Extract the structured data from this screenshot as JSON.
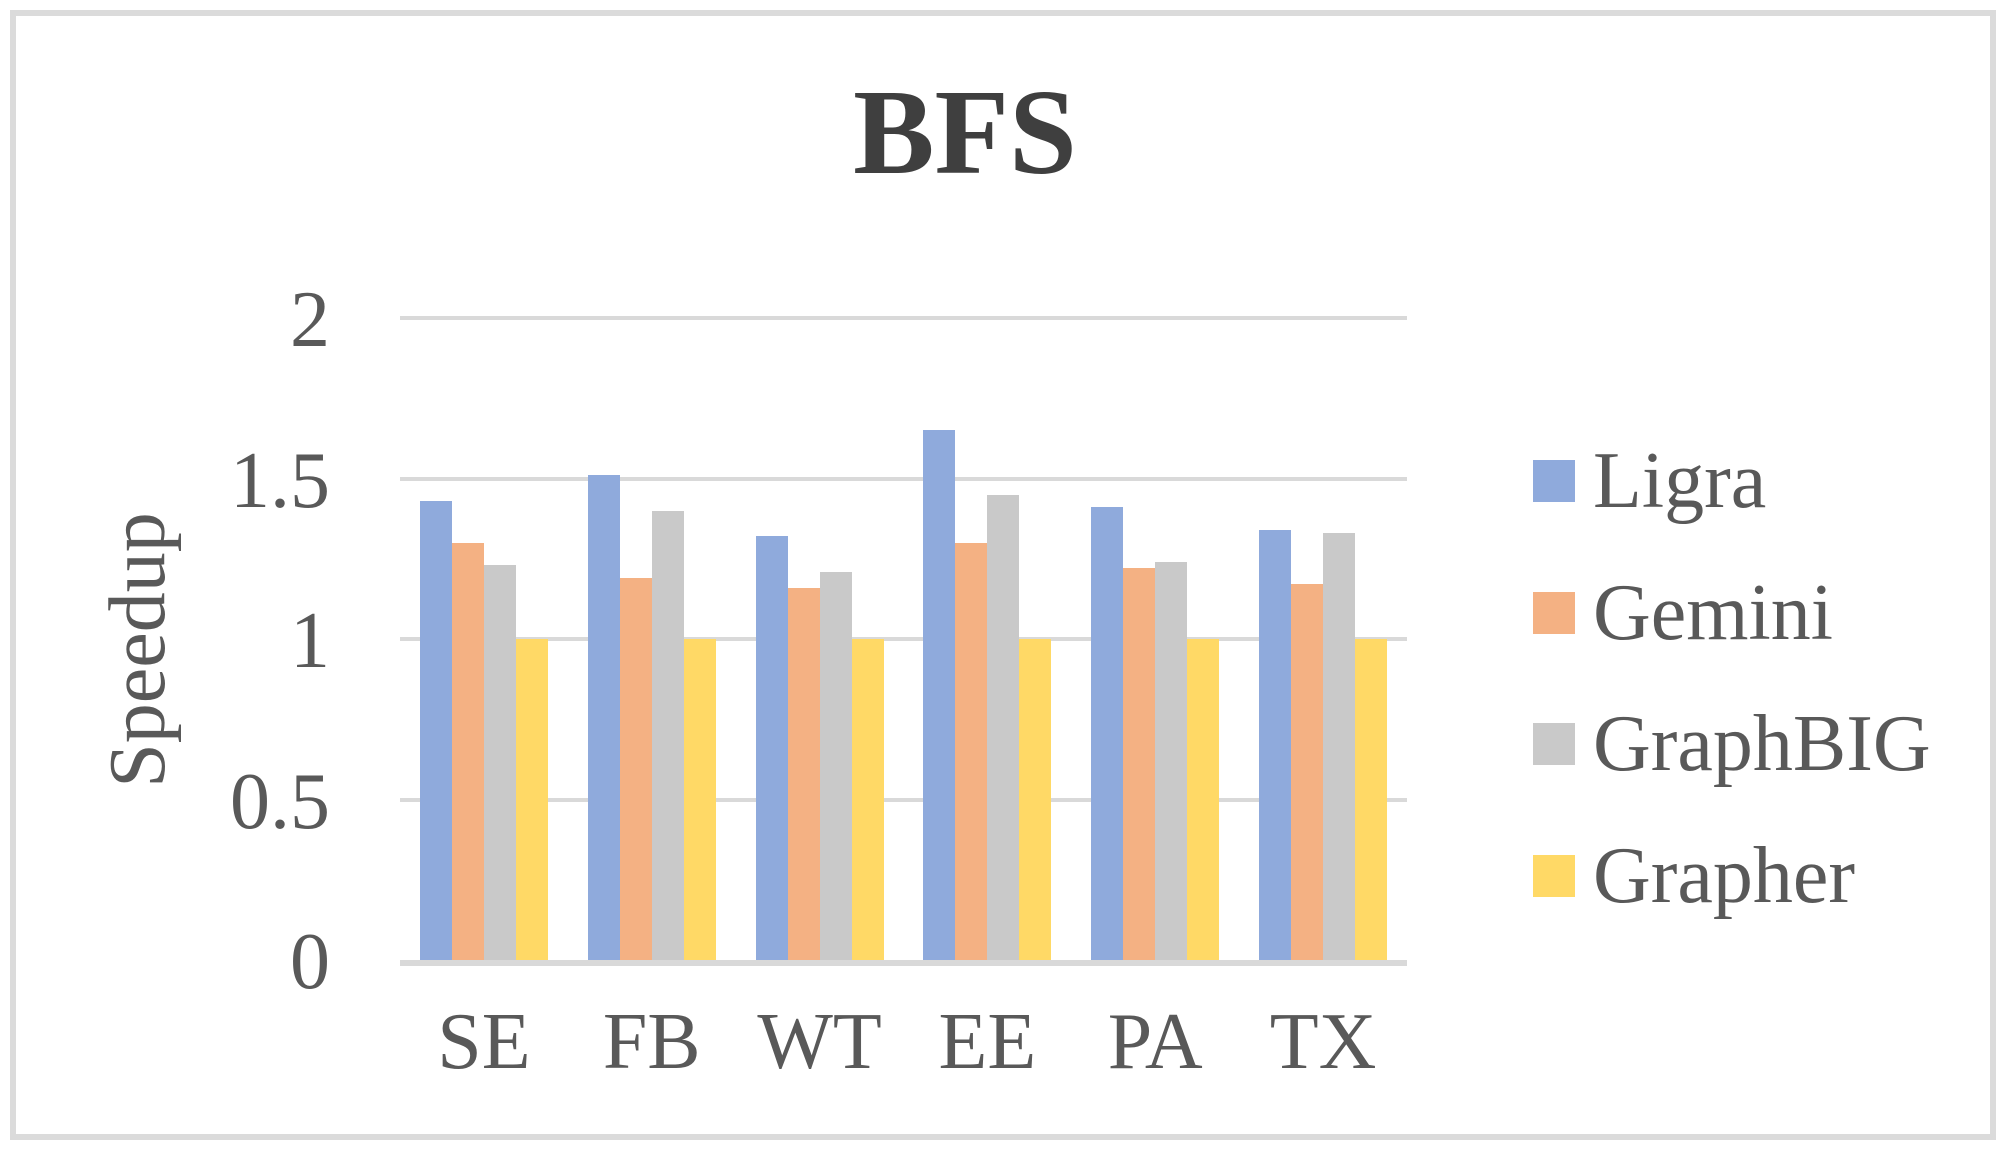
{
  "frame": {
    "border_color": "#DBDBDB"
  },
  "chart_data": {
    "type": "bar",
    "title": "BFS",
    "xlabel": "",
    "ylabel": "Speedup",
    "categories": [
      "SE",
      "FB",
      "WT",
      "EE",
      "PA",
      "TX"
    ],
    "series": [
      {
        "name": "Ligra",
        "color": "#8FAADC",
        "values": [
          1.43,
          1.51,
          1.32,
          1.65,
          1.41,
          1.34
        ]
      },
      {
        "name": "Gemini",
        "color": "#F4B183",
        "values": [
          1.3,
          1.19,
          1.16,
          1.3,
          1.22,
          1.17
        ]
      },
      {
        "name": "GraphBIG",
        "color": "#C9C9C9",
        "values": [
          1.23,
          1.4,
          1.21,
          1.45,
          1.24,
          1.33
        ]
      },
      {
        "name": "Grapher",
        "color": "#FFD966",
        "values": [
          1.0,
          1.0,
          1.0,
          1.0,
          1.0,
          1.0
        ]
      }
    ],
    "y_ticks": [
      0,
      0.5,
      1,
      1.5,
      2
    ],
    "y_tick_labels": [
      "0",
      "0.5",
      "1",
      "1.5",
      "2"
    ],
    "ylim": [
      0,
      2
    ],
    "grid": true,
    "legend_position": "right",
    "gridline_color": "#D9D9D9",
    "axis_line_color": "#D9D9D9",
    "axis_text_color": "#595959",
    "title_color": "#3F3F3F"
  }
}
